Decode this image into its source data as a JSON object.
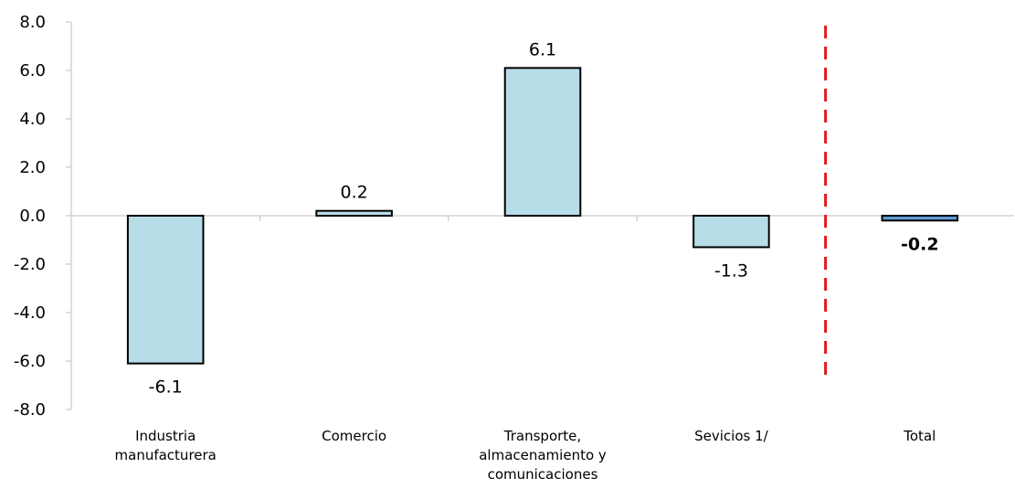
{
  "chart_data": {
    "type": "bar",
    "categories": [
      [
        "Industria",
        "manufacturera"
      ],
      [
        "Comercio"
      ],
      [
        "Transporte,",
        "almacenamiento y",
        "comunicaciones"
      ],
      [
        "Sevicios 1/"
      ],
      [
        "Total"
      ]
    ],
    "values": [
      -6.1,
      0.2,
      6.1,
      -1.3,
      -0.2
    ],
    "value_labels": [
      "-6.1",
      "0.2",
      "6.1",
      "-1.3",
      "-0.2"
    ],
    "highlight_index": 4,
    "ylim": [
      -8.0,
      8.0
    ],
    "yticks": [
      8.0,
      6.0,
      4.0,
      2.0,
      0.0,
      -2.0,
      -4.0,
      -6.0,
      -8.0
    ],
    "ytick_labels": [
      "8.0",
      "6.0",
      "4.0",
      "2.0",
      "0.0",
      "-2.0",
      "-4.0",
      "-6.0",
      "-8.0"
    ],
    "grid": false,
    "separator": {
      "after_index": 3,
      "style": "dashed",
      "color": "#e31a1c"
    },
    "colors": {
      "bar_fill": "#b7dde8",
      "highlight_fill": "#5b9bd5",
      "bar_stroke": "#000000",
      "axis": "#bfbfbf"
    }
  }
}
